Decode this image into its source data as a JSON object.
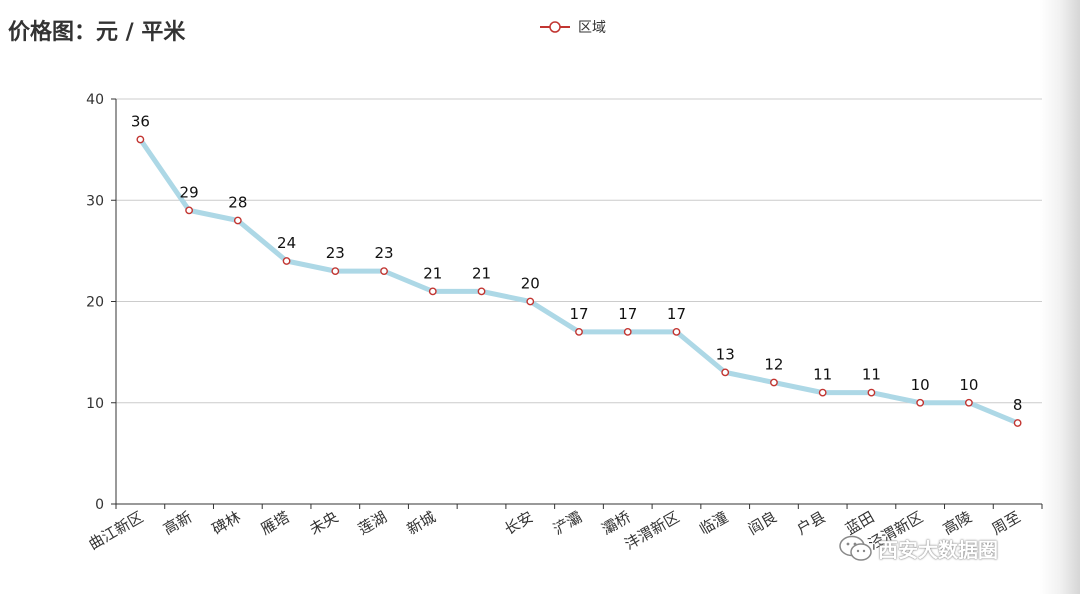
{
  "chart_data": {
    "type": "line",
    "title": "价格图：元 / 平米",
    "categories": [
      "曲江新区",
      "高新",
      "碑林",
      "雁塔",
      "未央",
      "莲湖",
      "新城",
      "",
      "长安",
      "浐灞",
      "灞桥",
      "沣渭新区",
      "临潼",
      "阎良",
      "户县",
      "蓝田",
      "泾渭新区",
      "高陵",
      "周至"
    ],
    "series": [
      {
        "name": "区域",
        "values": [
          36,
          29,
          28,
          24,
          23,
          23,
          21,
          21,
          20,
          17,
          17,
          17,
          13,
          12,
          11,
          11,
          10,
          10,
          8
        ]
      }
    ],
    "ylim": [
      0,
      40
    ],
    "yticks": [
      0,
      10,
      20,
      30,
      40
    ],
    "xlabel": "",
    "ylabel": "",
    "grid": true,
    "legend_position": "top-center",
    "data_labels": true,
    "colors": {
      "line": "#add8e6",
      "marker": "#c23531",
      "marker_fill": "#ffffff",
      "grid": "#cccccc",
      "axis": "#333333"
    }
  },
  "watermark": {
    "text": "西安大数据圈",
    "icon": "wechat-icon"
  }
}
